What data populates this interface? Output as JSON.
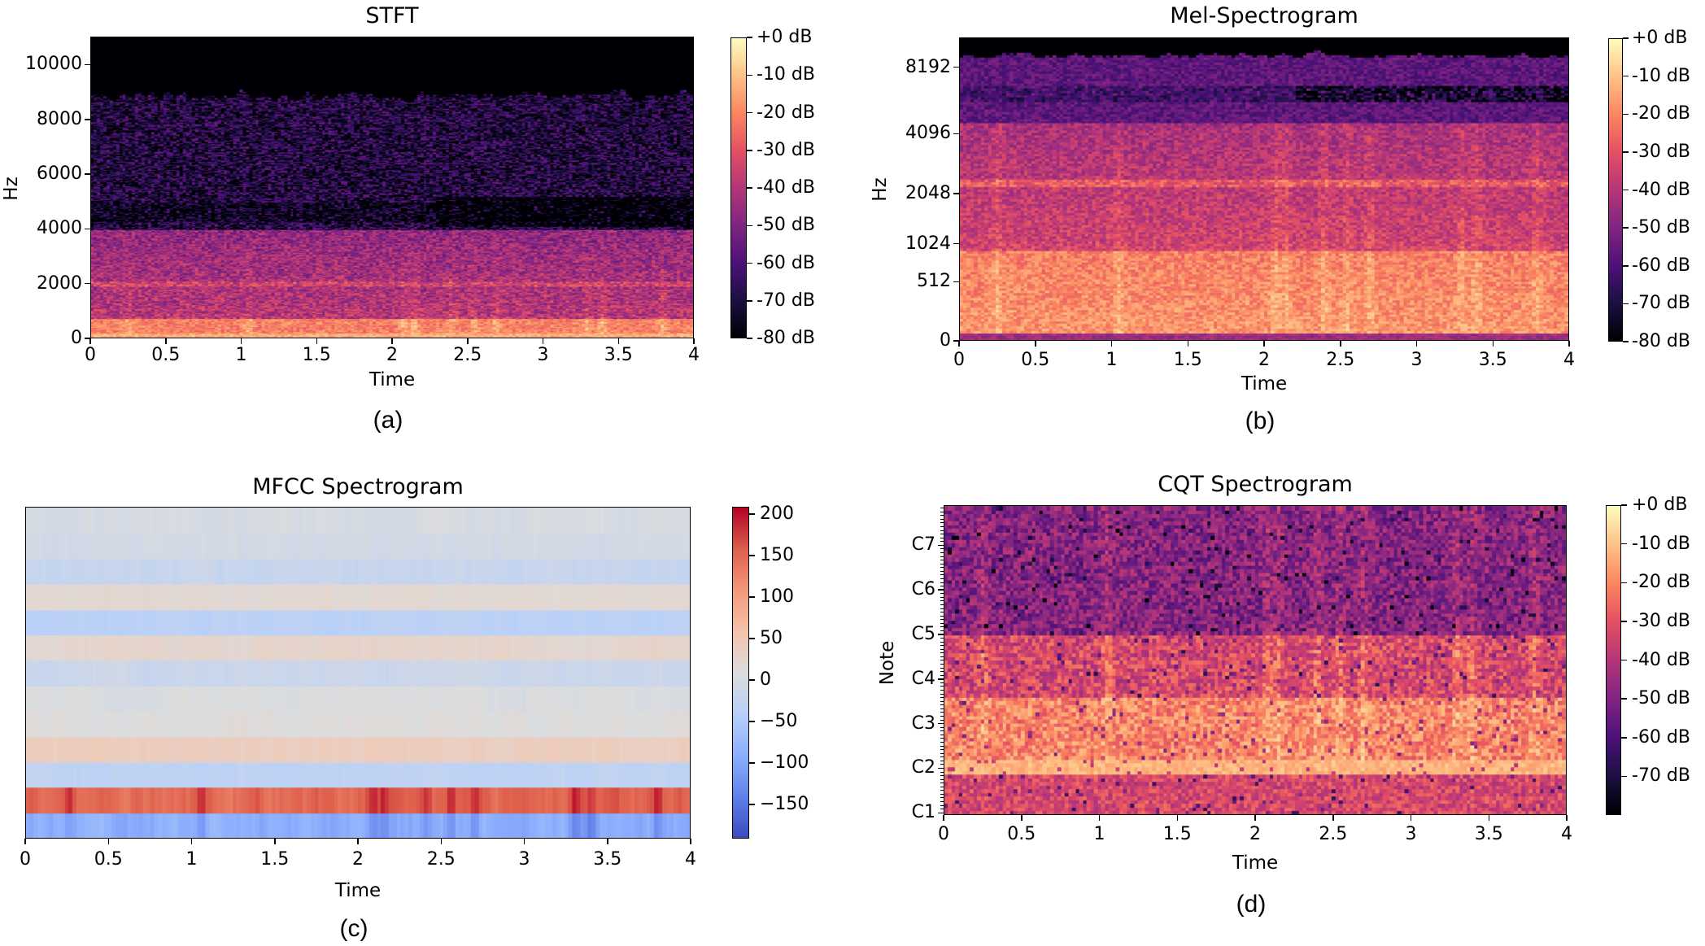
{
  "chart_data": [
    {
      "id": "stft",
      "type": "heatmap",
      "title": "STFT",
      "caption": "(a)",
      "xlabel": "Time",
      "ylabel": "Hz",
      "xlim": [
        0,
        4
      ],
      "x_ticks": [
        "0",
        "0.5",
        "1",
        "1.5",
        "2",
        "2.5",
        "3",
        "3.5",
        "4"
      ],
      "x_tick_values": [
        0,
        0.5,
        1,
        1.5,
        2,
        2.5,
        3,
        3.5,
        4
      ],
      "ylim": [
        0,
        11025
      ],
      "y_ticks": [
        "0",
        "2000",
        "4000",
        "6000",
        "8000",
        "10000"
      ],
      "y_tick_values": [
        0,
        2000,
        4000,
        6000,
        8000,
        10000
      ],
      "y_scale": "linear",
      "colormap": "magma",
      "colorbar": {
        "range": [
          -80,
          0
        ],
        "ticks": [
          "+0 dB",
          "-10 dB",
          "-20 dB",
          "-30 dB",
          "-40 dB",
          "-50 dB",
          "-60 dB",
          "-70 dB",
          "-80 dB"
        ],
        "tick_values": [
          0,
          -10,
          -20,
          -30,
          -40,
          -50,
          -60,
          -70,
          -80
        ]
      }
    },
    {
      "id": "mel",
      "type": "heatmap",
      "title": "Mel-Spectrogram",
      "caption": "(b)",
      "xlabel": "Time",
      "ylabel": "Hz",
      "xlim": [
        0,
        4
      ],
      "x_ticks": [
        "0",
        "0.5",
        "1",
        "1.5",
        "2",
        "2.5",
        "3",
        "3.5",
        "4"
      ],
      "x_tick_values": [
        0,
        0.5,
        1,
        1.5,
        2,
        2.5,
        3,
        3.5,
        4
      ],
      "y_ticks": [
        "0",
        "512",
        "1024",
        "2048",
        "4096",
        "8192"
      ],
      "y_tick_values": [
        0,
        512,
        1024,
        2048,
        4096,
        8192
      ],
      "y_scale": "mel",
      "colormap": "magma",
      "colorbar": {
        "range": [
          -80,
          0
        ],
        "ticks": [
          "+0 dB",
          "-10 dB",
          "-20 dB",
          "-30 dB",
          "-40 dB",
          "-50 dB",
          "-60 dB",
          "-70 dB",
          "-80 dB"
        ],
        "tick_values": [
          0,
          -10,
          -20,
          -30,
          -40,
          -50,
          -60,
          -70,
          -80
        ]
      }
    },
    {
      "id": "mfcc",
      "type": "heatmap",
      "title": "MFCC Spectrogram",
      "caption": "(c)",
      "xlabel": "Time",
      "ylabel": "",
      "xlim": [
        0,
        4
      ],
      "x_ticks": [
        "0",
        "0.5",
        "1",
        "1.5",
        "2",
        "2.5",
        "3",
        "3.5",
        "4"
      ],
      "x_tick_values": [
        0,
        0.5,
        1,
        1.5,
        2,
        2.5,
        3,
        3.5,
        4
      ],
      "n_coefficients": 13,
      "row_means_bottom_to_top": [
        -90,
        150,
        -30,
        40,
        10,
        5,
        -15,
        25,
        -35,
        20,
        -20,
        -5,
        0
      ],
      "colormap": "coolwarm",
      "colorbar": {
        "range": [
          -191,
          209
        ],
        "ticks": [
          "200",
          "150",
          "100",
          "50",
          "0",
          "−50",
          "−100",
          "−150"
        ],
        "tick_values": [
          200,
          150,
          100,
          50,
          0,
          -50,
          -100,
          -150
        ]
      }
    },
    {
      "id": "cqt",
      "type": "heatmap",
      "title": "CQT Spectrogram",
      "caption": "(d)",
      "xlabel": "Time",
      "ylabel": "Note",
      "xlim": [
        0,
        4
      ],
      "x_ticks": [
        "0",
        "0.5",
        "1",
        "1.5",
        "2",
        "2.5",
        "3",
        "3.5",
        "4"
      ],
      "x_tick_values": [
        0,
        0.5,
        1,
        1.5,
        2,
        2.5,
        3,
        3.5,
        4
      ],
      "ylim_octaves": [
        0.95,
        7.9
      ],
      "y_ticks": [
        "C1",
        "C2",
        "C3",
        "C4",
        "C5",
        "C6",
        "C7"
      ],
      "y_tick_values": [
        1,
        2,
        3,
        4,
        5,
        6,
        7
      ],
      "y_scale": "cqt_note",
      "colormap": "magma",
      "colorbar": {
        "range": [
          -80,
          0
        ],
        "ticks": [
          "+0 dB",
          "-10 dB",
          "-20 dB",
          "-30 dB",
          "-40 dB",
          "-50 dB",
          "-60 dB",
          "-70 dB"
        ],
        "tick_values": [
          0,
          -10,
          -20,
          -30,
          -40,
          -50,
          -60,
          -70
        ]
      }
    }
  ]
}
